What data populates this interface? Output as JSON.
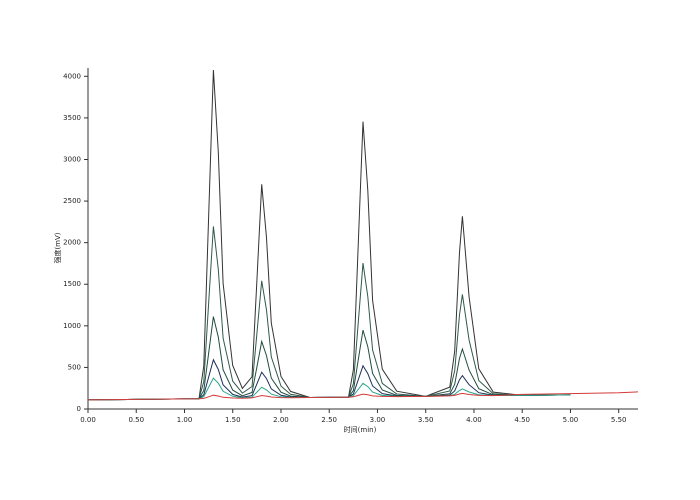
{
  "chart_data": {
    "type": "line",
    "xlabel": "时间(min)",
    "ylabel": "强度(mV)",
    "x": [
      0,
      0.5,
      1.0,
      1.15,
      1.2,
      1.25,
      1.3,
      1.35,
      1.4,
      1.5,
      1.6,
      1.7,
      1.75,
      1.8,
      1.85,
      1.9,
      2.0,
      2.1,
      2.3,
      2.6,
      2.7,
      2.75,
      2.8,
      2.85,
      2.9,
      2.95,
      3.05,
      3.2,
      3.5,
      3.75,
      3.8,
      3.85,
      3.88,
      3.95,
      4.05,
      4.2,
      4.5,
      5.0,
      5.5,
      5.7
    ],
    "series": [
      {
        "color": "#333333",
        "values": [
          110,
          116,
          122,
          124,
          519,
          2298,
          4076,
          3089,
          1510,
          523,
          248,
          387,
          1545,
          2702,
          2060,
          1033,
          391,
          212,
          138,
          141,
          142,
          474,
          1965,
          3454,
          2628,
          1304,
          478,
          214,
          152,
          263,
          696,
          1884,
          2317,
          1345,
          483,
          203,
          164,
          170,
          null,
          null
        ]
      },
      {
        "color": "#2f5a4a",
        "values": [
          110,
          116,
          122,
          124,
          331,
          1264,
          2196,
          1679,
          852,
          335,
          191,
          271,
          907,
          1542,
          1190,
          627,
          275,
          177,
          138,
          141,
          142,
          304,
          1030,
          1754,
          1353,
          709,
          308,
          180,
          152,
          216,
          461,
          1132,
          1377,
          828,
          342,
          184,
          164,
          170,
          null,
          null
        ]
      },
      {
        "color": "#1f4d3d",
        "values": [
          110,
          116,
          122,
          124,
          223,
          667,
          1111,
          865,
          472,
          227,
          159,
          198,
          505,
          812,
          642,
          371,
          202,
          155,
          138,
          141,
          142,
          224,
          587,
          949,
          749,
          427,
          228,
          164,
          152,
          183,
          297,
          608,
          722,
          468,
          244,
          171,
          164,
          170,
          null,
          null
        ]
      },
      {
        "color": "#1a2f5a",
        "values": [
          110,
          116,
          122,
          124,
          171,
          381,
          591,
          475,
          290,
          175,
          143,
          161,
          302,
          442,
          365,
          242,
          165,
          144,
          138,
          141,
          142,
          181,
          350,
          519,
          426,
          276,
          185,
          156,
          152,
          167,
          217,
          352,
          402,
          292,
          196,
          165,
          164,
          170,
          null,
          null
        ]
      },
      {
        "color": "#2aa58a",
        "values": [
          110,
          116,
          122,
          124,
          149,
          260,
          371,
          310,
          213,
          153,
          136,
          143,
          203,
          262,
          230,
          179,
          147,
          139,
          138,
          141,
          142,
          160,
          235,
          309,
          269,
          203,
          164,
          151,
          152,
          159,
          177,
          224,
          242,
          204,
          172,
          162,
          164,
          170,
          null,
          null
        ]
      },
      {
        "color": "#d43a3a",
        "values": [
          110,
          116,
          122,
          124,
          128,
          147,
          166,
          156,
          141,
          132,
          130,
          133,
          148,
          162,
          155,
          144,
          137,
          136,
          138,
          141,
          142,
          147,
          163,
          179,
          171,
          157,
          151,
          149,
          152,
          157,
          164,
          180,
          187,
          174,
          164,
          161,
          175,
          185,
          195,
          205
        ]
      }
    ],
    "xlim": [
      0,
      5.7
    ],
    "ylim": [
      0,
      4100
    ],
    "xticks": [
      {
        "value": 0,
        "label": "0.00"
      },
      {
        "value": 0.5,
        "label": "0.50"
      },
      {
        "value": 1,
        "label": "1.00"
      },
      {
        "value": 1.5,
        "label": "1.50"
      },
      {
        "value": 2,
        "label": "2.00"
      },
      {
        "value": 2.5,
        "label": "2.50"
      },
      {
        "value": 3,
        "label": "3.00"
      },
      {
        "value": 3.5,
        "label": "3.50"
      },
      {
        "value": 4,
        "label": "4.00"
      },
      {
        "value": 4.5,
        "label": "4.50"
      },
      {
        "value": 5,
        "label": "5.00"
      },
      {
        "value": 5.5,
        "label": "5.50"
      }
    ],
    "yticks": [
      0,
      500,
      1000,
      1500,
      2000,
      2500,
      3000,
      3500,
      4000
    ]
  }
}
